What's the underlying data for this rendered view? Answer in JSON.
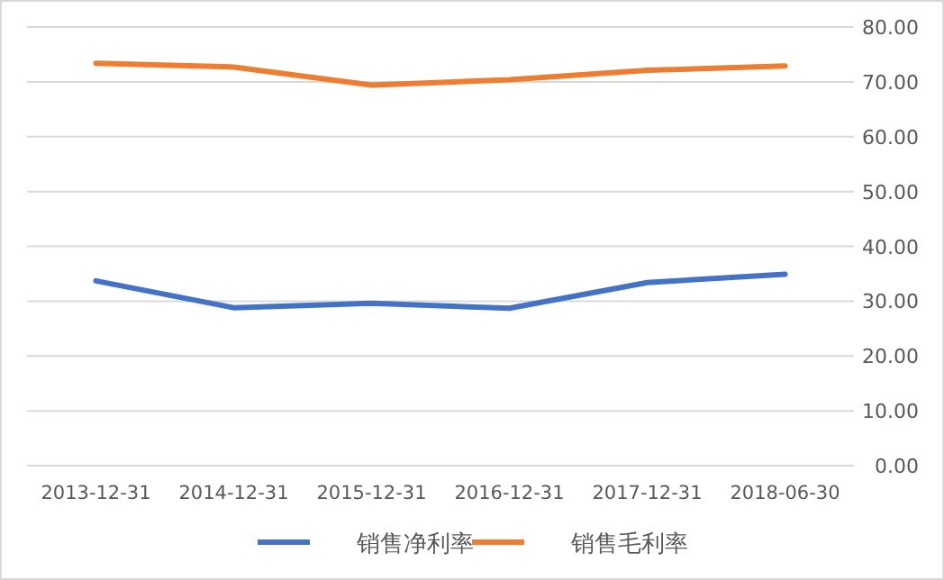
{
  "chart_data": {
    "type": "line",
    "categories": [
      "2013-12-31",
      "2014-12-31",
      "2015-12-31",
      "2016-12-31",
      "2017-12-31",
      "2018-06-30"
    ],
    "series": [
      {
        "name": "销售净利率",
        "color": "#4472c4",
        "values": [
          33.7,
          28.8,
          29.6,
          28.7,
          33.4,
          34.9
        ]
      },
      {
        "name": "销售毛利率",
        "color": "#ed7d31",
        "values": [
          73.4,
          72.7,
          69.4,
          70.4,
          72.1,
          72.9
        ]
      }
    ],
    "ylim": [
      0,
      80
    ],
    "yticks": [
      {
        "value": 0,
        "label": "0.00"
      },
      {
        "value": 10,
        "label": "10.00"
      },
      {
        "value": 20,
        "label": "20.00"
      },
      {
        "value": 30,
        "label": "30.00"
      },
      {
        "value": 40,
        "label": "40.00"
      },
      {
        "value": 50,
        "label": "50.00"
      },
      {
        "value": 60,
        "label": "60.00"
      },
      {
        "value": 70,
        "label": "70.00"
      },
      {
        "value": 80,
        "label": "80.00"
      }
    ],
    "grid": "y",
    "legend": "bottom",
    "marker": "none",
    "line_style": "solid"
  }
}
